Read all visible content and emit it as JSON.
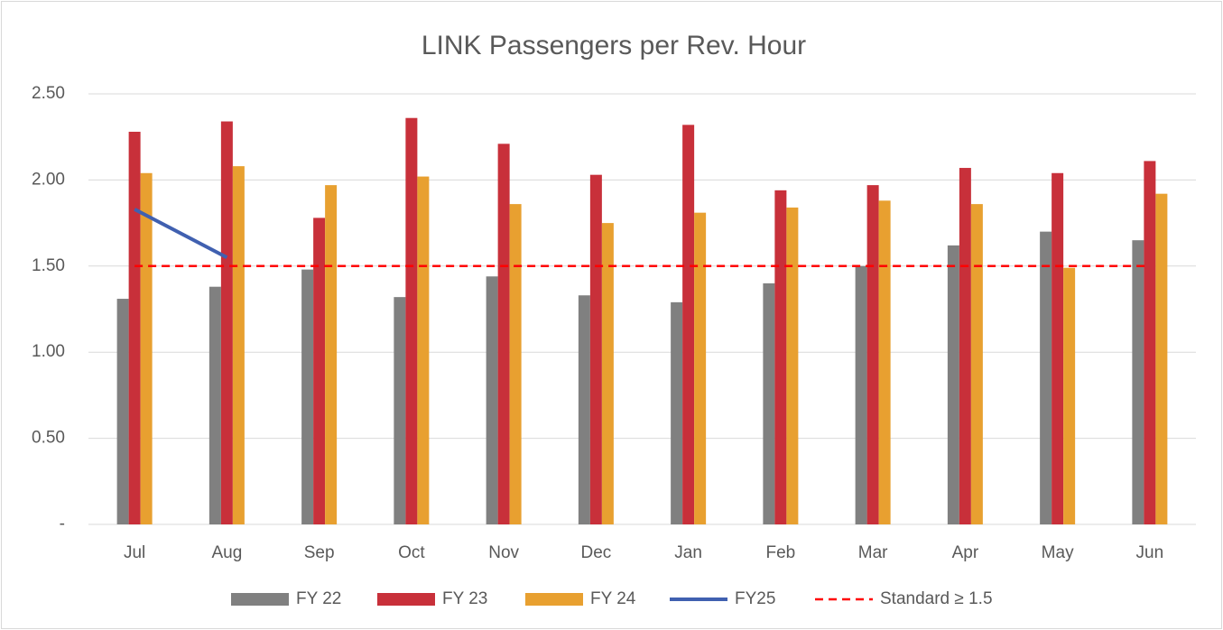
{
  "chart_data": {
    "type": "bar",
    "title": "LINK Passengers per Rev. Hour",
    "categories": [
      "Jul",
      "Aug",
      "Sep",
      "Oct",
      "Nov",
      "Dec",
      "Jan",
      "Feb",
      "Mar",
      "Apr",
      "May",
      "Jun"
    ],
    "series": [
      {
        "name": "FY 22",
        "kind": "bar",
        "color": "#808080",
        "values": [
          1.31,
          1.38,
          1.48,
          1.32,
          1.44,
          1.33,
          1.29,
          1.4,
          1.5,
          1.62,
          1.7,
          1.65
        ]
      },
      {
        "name": "FY 23",
        "kind": "bar",
        "color": "#c8303a",
        "values": [
          2.28,
          2.34,
          1.78,
          2.36,
          2.21,
          2.03,
          2.32,
          1.94,
          1.97,
          2.07,
          2.04,
          2.11
        ]
      },
      {
        "name": "FY 24",
        "kind": "bar",
        "color": "#e8a030",
        "values": [
          2.04,
          2.08,
          1.97,
          2.02,
          1.86,
          1.75,
          1.81,
          1.84,
          1.88,
          1.86,
          1.49,
          1.92
        ]
      },
      {
        "name": "FY25",
        "kind": "line",
        "color": "#4060b0",
        "values": [
          1.83,
          1.55,
          null,
          null,
          null,
          null,
          null,
          null,
          null,
          null,
          null,
          null
        ]
      },
      {
        "name": "Standard ≥ 1.5",
        "kind": "line",
        "dashed": true,
        "color": "#ff0000",
        "values": [
          1.5,
          1.5,
          1.5,
          1.5,
          1.5,
          1.5,
          1.5,
          1.5,
          1.5,
          1.5,
          1.5,
          1.5
        ]
      }
    ],
    "ylim": [
      0,
      2.5
    ],
    "yticks": [
      {
        "value": 0,
        "label": "-"
      },
      {
        "value": 0.5,
        "label": "0.50"
      },
      {
        "value": 1,
        "label": "1.00"
      },
      {
        "value": 1.5,
        "label": "1.50"
      },
      {
        "value": 2,
        "label": "2.00"
      },
      {
        "value": 2.5,
        "label": "2.50"
      }
    ],
    "grid": true,
    "legend": "bottom"
  }
}
